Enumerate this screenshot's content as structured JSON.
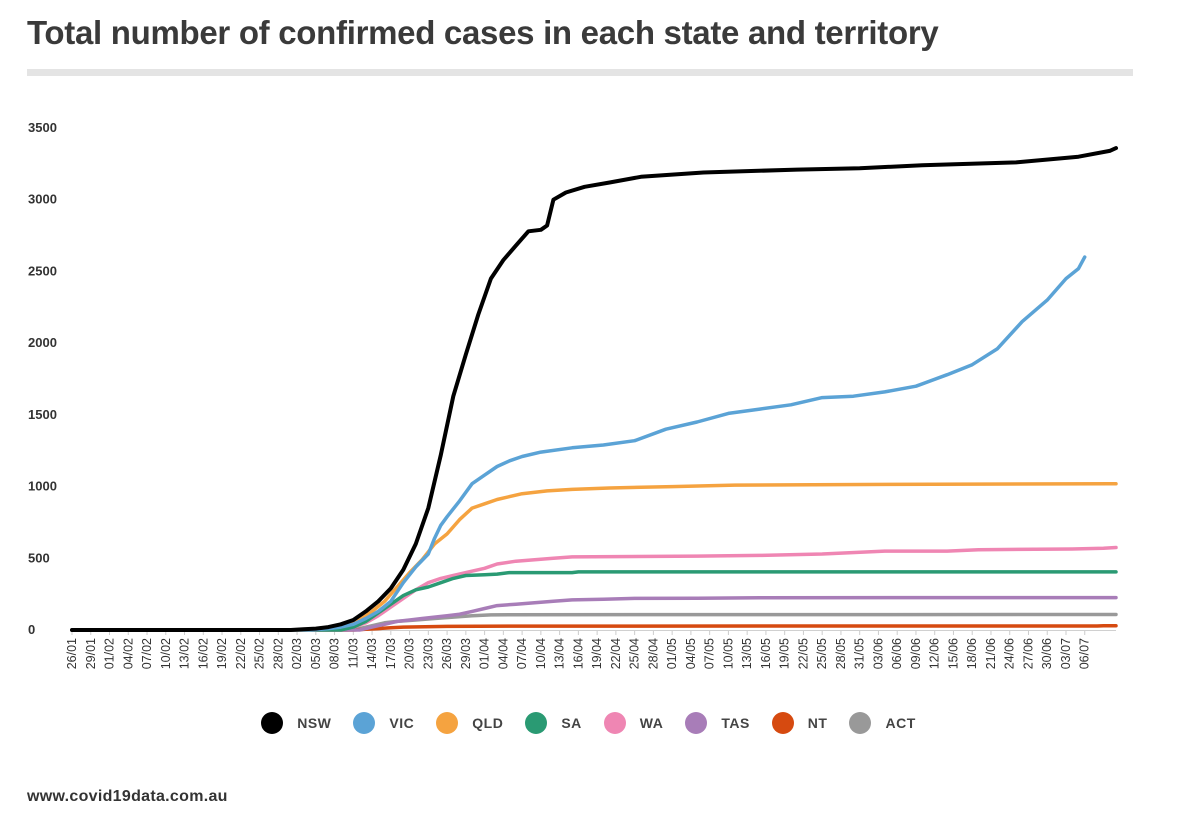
{
  "title": "Total number of confirmed cases in each state and territory",
  "footer": "www.covid19data.com.au",
  "chart_data": {
    "type": "line",
    "title": "Total number of confirmed cases in each state and territory",
    "xlabel": "",
    "ylabel": "",
    "ylim": [
      0,
      3500
    ],
    "yticks": [
      0,
      500,
      1000,
      1500,
      2000,
      2500,
      3000,
      3500
    ],
    "x_start": "26/01/2020",
    "x_end": "07/07/2020",
    "xtick_labels": [
      "26/01",
      "29/01",
      "01/02",
      "04/02",
      "07/02",
      "10/02",
      "13/02",
      "16/02",
      "19/02",
      "22/02",
      "25/02",
      "28/02",
      "02/03",
      "05/03",
      "08/03",
      "11/03",
      "14/03",
      "17/03",
      "20/03",
      "23/03",
      "26/03",
      "29/03",
      "01/04",
      "04/04",
      "07/04",
      "10/04",
      "13/04",
      "16/04",
      "19/04",
      "22/04",
      "25/04",
      "28/04",
      "01/05",
      "04/05",
      "07/05",
      "10/05",
      "13/05",
      "16/05",
      "19/05",
      "22/05",
      "25/05",
      "28/05",
      "31/05",
      "03/06",
      "06/06",
      "09/06",
      "12/06",
      "15/06",
      "18/06",
      "21/06",
      "24/06",
      "27/06",
      "30/06",
      "03/07",
      "06/07"
    ],
    "legend_position": "bottom",
    "series": [
      {
        "name": "NSW",
        "color": "#000000",
        "points": [
          [
            0,
            0
          ],
          [
            35,
            0
          ],
          [
            37,
            5
          ],
          [
            39,
            10
          ],
          [
            41,
            20
          ],
          [
            43,
            40
          ],
          [
            45,
            70
          ],
          [
            47,
            130
          ],
          [
            49,
            200
          ],
          [
            51,
            290
          ],
          [
            53,
            420
          ],
          [
            55,
            600
          ],
          [
            57,
            850
          ],
          [
            59,
            1220
          ],
          [
            61,
            1630
          ],
          [
            63,
            1920
          ],
          [
            65,
            2200
          ],
          [
            67,
            2450
          ],
          [
            69,
            2580
          ],
          [
            71,
            2680
          ],
          [
            73,
            2780
          ],
          [
            75,
            2790
          ],
          [
            76,
            2820
          ],
          [
            77,
            3000
          ],
          [
            79,
            3050
          ],
          [
            82,
            3090
          ],
          [
            86,
            3120
          ],
          [
            91,
            3160
          ],
          [
            101,
            3190
          ],
          [
            116,
            3210
          ],
          [
            126,
            3220
          ],
          [
            136,
            3240
          ],
          [
            151,
            3260
          ],
          [
            161,
            3300
          ],
          [
            166,
            3340
          ],
          [
            167,
            3360
          ]
        ]
      },
      {
        "name": "VIC",
        "color": "#5ba3d6",
        "points": [
          [
            0,
            0
          ],
          [
            38,
            0
          ],
          [
            41,
            10
          ],
          [
            43,
            20
          ],
          [
            45,
            40
          ],
          [
            47,
            80
          ],
          [
            49,
            130
          ],
          [
            51,
            200
          ],
          [
            53,
            330
          ],
          [
            55,
            440
          ],
          [
            57,
            530
          ],
          [
            58,
            640
          ],
          [
            59,
            730
          ],
          [
            60,
            790
          ],
          [
            62,
            900
          ],
          [
            64,
            1020
          ],
          [
            66,
            1080
          ],
          [
            68,
            1140
          ],
          [
            70,
            1180
          ],
          [
            72,
            1210
          ],
          [
            75,
            1240
          ],
          [
            80,
            1270
          ],
          [
            85,
            1290
          ],
          [
            90,
            1320
          ],
          [
            95,
            1400
          ],
          [
            100,
            1450
          ],
          [
            105,
            1510
          ],
          [
            110,
            1540
          ],
          [
            115,
            1570
          ],
          [
            120,
            1620
          ],
          [
            125,
            1630
          ],
          [
            130,
            1660
          ],
          [
            135,
            1700
          ],
          [
            140,
            1780
          ],
          [
            144,
            1850
          ],
          [
            148,
            1960
          ],
          [
            152,
            2150
          ],
          [
            156,
            2300
          ],
          [
            159,
            2450
          ],
          [
            161,
            2520
          ],
          [
            162,
            2600
          ]
        ]
      },
      {
        "name": "QLD",
        "color": "#f5a340",
        "points": [
          [
            0,
            0
          ],
          [
            38,
            0
          ],
          [
            40,
            10
          ],
          [
            42,
            20
          ],
          [
            44,
            40
          ],
          [
            46,
            70
          ],
          [
            48,
            130
          ],
          [
            50,
            200
          ],
          [
            52,
            300
          ],
          [
            54,
            400
          ],
          [
            56,
            490
          ],
          [
            58,
            600
          ],
          [
            60,
            670
          ],
          [
            62,
            770
          ],
          [
            64,
            850
          ],
          [
            66,
            880
          ],
          [
            68,
            910
          ],
          [
            70,
            930
          ],
          [
            72,
            950
          ],
          [
            76,
            970
          ],
          [
            80,
            980
          ],
          [
            86,
            990
          ],
          [
            96,
            1000
          ],
          [
            106,
            1010
          ],
          [
            131,
            1015
          ],
          [
            166,
            1020
          ],
          [
            167,
            1020
          ]
        ]
      },
      {
        "name": "SA",
        "color": "#2a9a73",
        "points": [
          [
            0,
            0
          ],
          [
            43,
            0
          ],
          [
            45,
            20
          ],
          [
            47,
            60
          ],
          [
            49,
            120
          ],
          [
            51,
            180
          ],
          [
            53,
            240
          ],
          [
            55,
            280
          ],
          [
            57,
            300
          ],
          [
            59,
            330
          ],
          [
            61,
            360
          ],
          [
            63,
            380
          ],
          [
            66,
            385
          ],
          [
            68,
            390
          ],
          [
            70,
            400
          ],
          [
            80,
            400
          ],
          [
            81,
            405
          ],
          [
            167,
            405
          ]
        ]
      },
      {
        "name": "WA",
        "color": "#ef86b3",
        "points": [
          [
            0,
            0
          ],
          [
            43,
            0
          ],
          [
            45,
            20
          ],
          [
            47,
            50
          ],
          [
            49,
            100
          ],
          [
            51,
            160
          ],
          [
            53,
            220
          ],
          [
            55,
            280
          ],
          [
            57,
            330
          ],
          [
            59,
            360
          ],
          [
            61,
            380
          ],
          [
            63,
            400
          ],
          [
            66,
            430
          ],
          [
            68,
            460
          ],
          [
            71,
            480
          ],
          [
            74,
            490
          ],
          [
            77,
            500
          ],
          [
            80,
            510
          ],
          [
            100,
            515
          ],
          [
            110,
            520
          ],
          [
            120,
            530
          ],
          [
            130,
            550
          ],
          [
            140,
            550
          ],
          [
            145,
            560
          ],
          [
            160,
            565
          ],
          [
            165,
            570
          ],
          [
            167,
            575
          ]
        ]
      },
      {
        "name": "TAS",
        "color": "#a87db8",
        "points": [
          [
            0,
            0
          ],
          [
            46,
            0
          ],
          [
            48,
            20
          ],
          [
            50,
            40
          ],
          [
            52,
            60
          ],
          [
            54,
            70
          ],
          [
            56,
            80
          ],
          [
            58,
            90
          ],
          [
            60,
            100
          ],
          [
            62,
            110
          ],
          [
            64,
            130
          ],
          [
            66,
            150
          ],
          [
            68,
            170
          ],
          [
            71,
            180
          ],
          [
            74,
            190
          ],
          [
            77,
            200
          ],
          [
            80,
            210
          ],
          [
            85,
            215
          ],
          [
            90,
            220
          ],
          [
            100,
            222
          ],
          [
            110,
            225
          ],
          [
            167,
            226
          ]
        ]
      },
      {
        "name": "NT",
        "color": "#d64a10",
        "points": [
          [
            0,
            0
          ],
          [
            45,
            0
          ],
          [
            47,
            5
          ],
          [
            49,
            10
          ],
          [
            51,
            15
          ],
          [
            53,
            20
          ],
          [
            60,
            25
          ],
          [
            70,
            27
          ],
          [
            164,
            28
          ],
          [
            165,
            29
          ],
          [
            167,
            29
          ]
        ]
      },
      {
        "name": "ACT",
        "color": "#999999",
        "points": [
          [
            0,
            0
          ],
          [
            44,
            0
          ],
          [
            46,
            10
          ],
          [
            48,
            30
          ],
          [
            50,
            50
          ],
          [
            52,
            60
          ],
          [
            55,
            70
          ],
          [
            58,
            80
          ],
          [
            61,
            90
          ],
          [
            64,
            100
          ],
          [
            67,
            105
          ],
          [
            70,
            107
          ],
          [
            167,
            108
          ]
        ]
      }
    ]
  }
}
